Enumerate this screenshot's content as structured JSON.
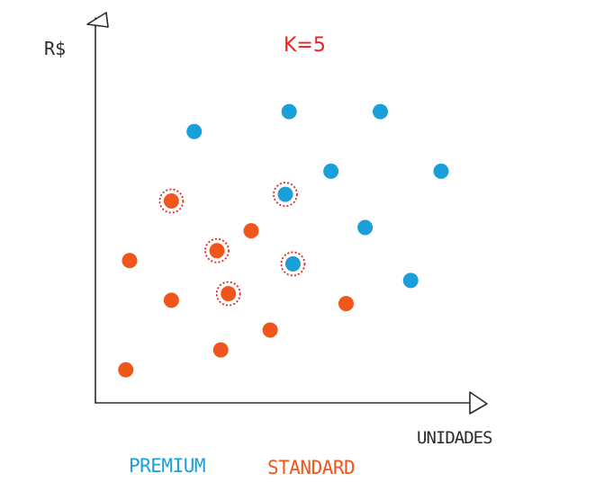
{
  "chart_data": {
    "type": "scatter",
    "annotation": "K=5",
    "ylabel": "R$",
    "xlabel": "UNIDADES",
    "xlim": [
      0,
      100
    ],
    "ylim": [
      0,
      100
    ],
    "grid": false,
    "legend_position": "bottom-left",
    "series": [
      {
        "name": "PREMIUM",
        "color": "#1a9fd9",
        "points": [
          {
            "x": 26,
            "y": 82,
            "neighbor": false
          },
          {
            "x": 51,
            "y": 88,
            "neighbor": false
          },
          {
            "x": 75,
            "y": 88,
            "neighbor": false
          },
          {
            "x": 62,
            "y": 70,
            "neighbor": false
          },
          {
            "x": 91,
            "y": 70,
            "neighbor": false
          },
          {
            "x": 50,
            "y": 63,
            "neighbor": true
          },
          {
            "x": 71,
            "y": 53,
            "neighbor": false
          },
          {
            "x": 52,
            "y": 42,
            "neighbor": true
          },
          {
            "x": 83,
            "y": 37,
            "neighbor": false
          }
        ]
      },
      {
        "name": "STANDARD",
        "color": "#f0561c",
        "points": [
          {
            "x": 20,
            "y": 61,
            "neighbor": true
          },
          {
            "x": 41,
            "y": 52,
            "neighbor": false
          },
          {
            "x": 32,
            "y": 46,
            "neighbor": true
          },
          {
            "x": 9,
            "y": 43,
            "neighbor": false
          },
          {
            "x": 20,
            "y": 31,
            "neighbor": false
          },
          {
            "x": 35,
            "y": 33,
            "neighbor": true
          },
          {
            "x": 66,
            "y": 30,
            "neighbor": false
          },
          {
            "x": 46,
            "y": 22,
            "neighbor": false
          },
          {
            "x": 33,
            "y": 16,
            "neighbor": false
          },
          {
            "x": 8,
            "y": 10,
            "neighbor": false
          }
        ]
      }
    ]
  },
  "colors": {
    "axis": "#2b2b2b",
    "annotation": "#e8231f",
    "neighbor_ring": "#e8231f"
  }
}
